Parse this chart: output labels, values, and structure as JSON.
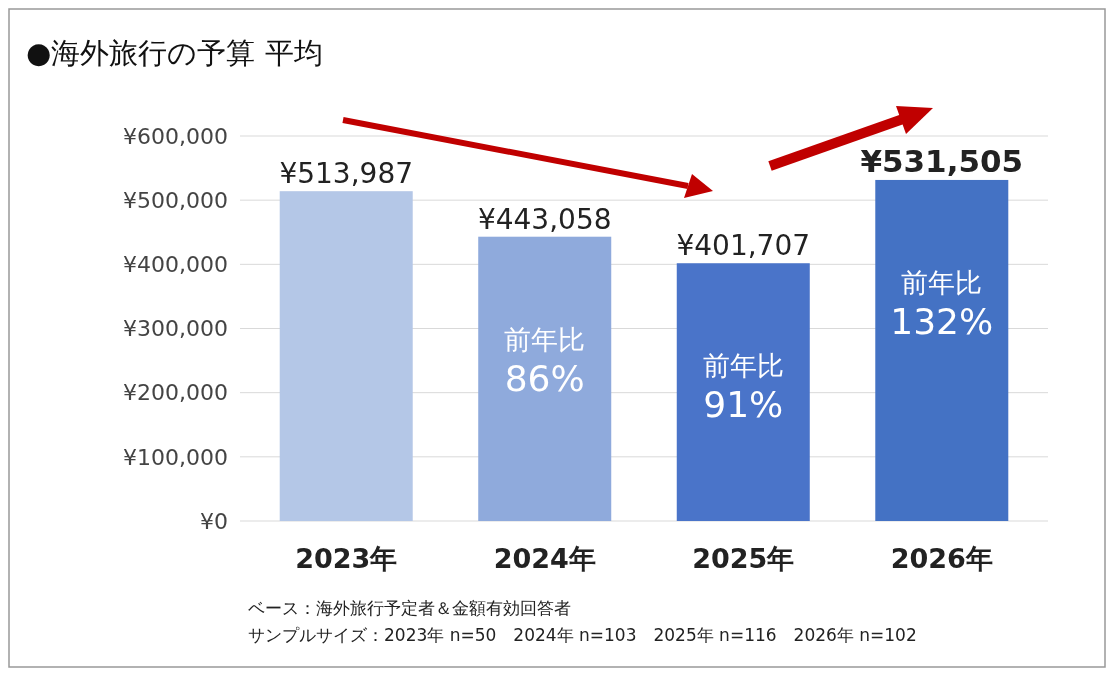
{
  "chart_data": {
    "type": "bar",
    "title": "●海外旅行の予算 平均",
    "categories": [
      "2023年",
      "2024年",
      "2025年",
      "2026年"
    ],
    "values": [
      513987,
      443058,
      401707,
      531505
    ],
    "colors": [
      "#b4c7e7",
      "#8faadc",
      "#4a74c9",
      "#4472c4"
    ],
    "value_labels": [
      "¥513,987",
      "¥443,058",
      "¥401,707",
      "¥531,505"
    ],
    "ylim": [
      0,
      600000
    ],
    "yticks": [
      {
        "value": 0,
        "label": "¥0"
      },
      {
        "value": 100000,
        "label": "¥100,000"
      },
      {
        "value": 200000,
        "label": "¥200,000"
      },
      {
        "value": 300000,
        "label": "¥300,000"
      },
      {
        "value": 400000,
        "label": "¥400,000"
      },
      {
        "value": 500000,
        "label": "¥500,000"
      },
      {
        "value": 600000,
        "label": "¥600,000"
      }
    ],
    "grid": "y",
    "annotations": [
      "前年比 86%",
      "前年比 91%",
      "前年比 132%",
      "ベース：海外旅行予定者＆金額有効回答者",
      "サンプルサイズ：2023年 n=50　2024年 n=103　2025年 n=116　2026年 n=102"
    ]
  }
}
